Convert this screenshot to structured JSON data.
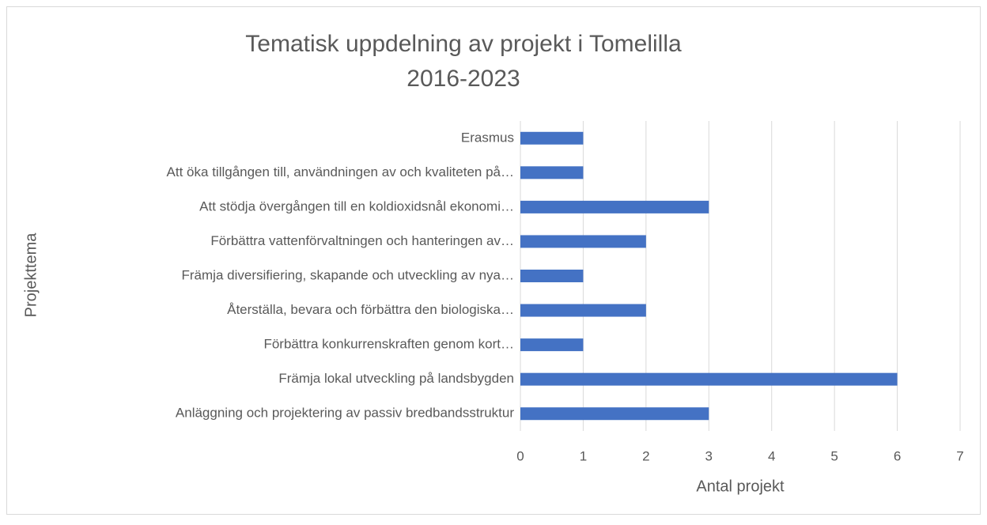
{
  "chart_data": {
    "type": "bar",
    "orientation": "horizontal",
    "title": [
      "Tematisk uppdelning av projekt i Tomelilla",
      "2016-2023"
    ],
    "x_label": "Antal projekt",
    "y_label": "Projekttema",
    "categories": [
      "Erasmus",
      "Att öka tillgången till, användningen av och kvaliteten på…",
      "Att stödja övergången till en koldioxidsnål ekonomi…",
      "Förbättra vattenförvaltningen och hanteringen av…",
      "Främja diversifiering, skapande och utveckling av nya…",
      "Återställa, bevara och förbättra den biologiska…",
      "Förbättra konkurrenskraften genom kort…",
      "Främja lokal utveckling på landsbygden",
      "Anläggning och projektering av passiv bredbandsstruktur"
    ],
    "values": [
      1,
      1,
      3,
      2,
      1,
      2,
      1,
      6,
      3
    ],
    "color": "#4472c4",
    "xlim": [
      0,
      7
    ],
    "xticks": [
      0,
      1,
      2,
      3,
      4,
      5,
      6,
      7
    ],
    "grid": true
  }
}
